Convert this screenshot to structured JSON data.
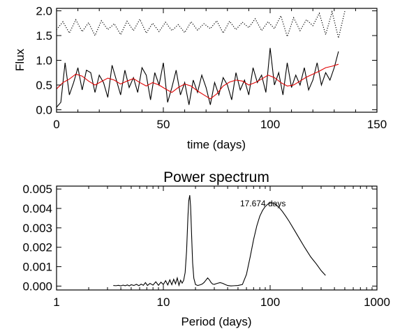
{
  "chart_data": [
    {
      "type": "line",
      "title": "",
      "xlabel": "time (days)",
      "ylabel": "Flux",
      "xlim": [
        0,
        150
      ],
      "ylim": [
        -0.05,
        2.05
      ],
      "x_ticks": [
        0,
        50,
        100,
        150
      ],
      "y_ticks": [
        0.0,
        0.5,
        1.0,
        1.5,
        2.0
      ],
      "x_tick_labels": [
        "0",
        "50",
        "100",
        "150"
      ],
      "y_tick_labels": [
        "0.0",
        "0.5",
        "1.0",
        "1.5",
        "2.0"
      ],
      "series": [
        {
          "color": "#000000",
          "style": "dotted",
          "x": [
            0,
            3,
            6,
            9,
            12,
            15,
            18,
            21,
            24,
            27,
            30,
            33,
            36,
            39,
            42,
            45,
            48,
            51,
            54,
            57,
            60,
            63,
            66,
            69,
            72,
            75,
            78,
            81,
            84,
            87,
            90,
            93,
            96,
            99,
            102,
            105,
            108,
            111,
            114,
            117,
            120,
            123,
            126,
            129,
            132,
            135
          ],
          "y": [
            1.62,
            1.78,
            1.55,
            1.82,
            1.58,
            1.76,
            1.5,
            1.8,
            1.62,
            1.74,
            1.52,
            1.79,
            1.6,
            1.83,
            1.55,
            1.75,
            1.58,
            1.77,
            1.6,
            1.72,
            1.56,
            1.78,
            1.61,
            1.74,
            1.64,
            1.8,
            1.55,
            1.79,
            1.62,
            1.77,
            1.66,
            1.84,
            1.6,
            1.78,
            1.64,
            1.9,
            1.48,
            1.86,
            1.6,
            1.82,
            1.7,
            1.95,
            1.52,
            1.98,
            1.45,
            2.0
          ]
        },
        {
          "color": "#000000",
          "style": "solid",
          "x": [
            0,
            2,
            4,
            6,
            8,
            10,
            12,
            14,
            16,
            18,
            20,
            22,
            24,
            26,
            28,
            30,
            32,
            34,
            36,
            38,
            40,
            42,
            44,
            46,
            48,
            50,
            52,
            54,
            56,
            58,
            60,
            62,
            64,
            66,
            68,
            70,
            72,
            74,
            76,
            78,
            80,
            82,
            84,
            86,
            88,
            90,
            92,
            94,
            96,
            98,
            100,
            102,
            104,
            106,
            108,
            110,
            112,
            114,
            116,
            118,
            120,
            122,
            124,
            126,
            128,
            130,
            132
          ],
          "y": [
            0.05,
            0.15,
            0.95,
            0.3,
            0.55,
            0.85,
            0.4,
            0.8,
            0.75,
            0.35,
            0.7,
            0.55,
            0.25,
            0.9,
            0.6,
            0.3,
            0.8,
            0.45,
            0.65,
            0.35,
            0.85,
            0.7,
            0.2,
            0.75,
            0.5,
            0.95,
            0.15,
            0.45,
            0.8,
            0.3,
            0.55,
            0.1,
            0.6,
            0.35,
            0.7,
            0.45,
            0.1,
            0.55,
            0.3,
            0.65,
            0.5,
            0.2,
            0.75,
            0.4,
            0.6,
            0.3,
            0.85,
            0.55,
            0.7,
            0.35,
            1.25,
            0.5,
            0.75,
            0.3,
            0.95,
            0.45,
            0.7,
            0.5,
            0.85,
            0.4,
            0.6,
            0.95,
            0.5,
            0.75,
            0.6,
            0.85,
            1.18
          ]
        },
        {
          "color": "#e00000",
          "style": "solid",
          "x": [
            0,
            3,
            6,
            9,
            12,
            15,
            18,
            21,
            24,
            27,
            30,
            33,
            36,
            39,
            42,
            45,
            48,
            51,
            54,
            57,
            60,
            63,
            66,
            69,
            72,
            75,
            78,
            81,
            84,
            87,
            90,
            93,
            96,
            99,
            102,
            105,
            108,
            111,
            114,
            117,
            120,
            123,
            126,
            129,
            132
          ],
          "y": [
            0.42,
            0.55,
            0.62,
            0.72,
            0.68,
            0.58,
            0.5,
            0.57,
            0.64,
            0.6,
            0.52,
            0.58,
            0.63,
            0.55,
            0.48,
            0.55,
            0.5,
            0.42,
            0.35,
            0.45,
            0.52,
            0.48,
            0.38,
            0.3,
            0.22,
            0.32,
            0.48,
            0.56,
            0.6,
            0.58,
            0.5,
            0.55,
            0.62,
            0.7,
            0.65,
            0.55,
            0.48,
            0.5,
            0.58,
            0.66,
            0.72,
            0.78,
            0.85,
            0.88,
            0.92
          ]
        }
      ]
    },
    {
      "type": "line",
      "title": "Power spectrum",
      "xlabel": "Period (days)",
      "ylabel": "",
      "xscale": "log",
      "xlim": [
        1,
        1000
      ],
      "ylim": [
        -0.0002,
        0.00515
      ],
      "x_ticks": [
        1,
        10,
        100,
        1000
      ],
      "y_ticks": [
        0.0,
        0.001,
        0.002,
        0.003,
        0.004,
        0.005
      ],
      "x_tick_labels": [
        "1",
        "10",
        "100",
        "1000"
      ],
      "y_tick_labels": [
        "0.000",
        "0.001",
        "0.002",
        "0.003",
        "0.004",
        "0.005"
      ],
      "annotations": [
        {
          "text": "17.674 days",
          "x": 140,
          "y": 0.0041
        }
      ],
      "series": [
        {
          "color": "#000000",
          "style": "solid",
          "x": [
            3.4,
            3.6,
            3.8,
            4.0,
            4.2,
            4.4,
            4.6,
            4.8,
            5.0,
            5.3,
            5.6,
            5.9,
            6.2,
            6.5,
            6.8,
            7.1,
            7.5,
            8.0,
            8.5,
            9.0,
            9.5,
            10.0,
            10.5,
            11.0,
            11.5,
            12.0,
            12.5,
            13.0,
            13.5,
            14.0,
            14.5,
            15.0,
            15.5,
            16.0,
            16.5,
            17.0,
            17.3,
            17.674,
            18.0,
            18.4,
            18.8,
            19.3,
            20.0,
            21.0,
            22.0,
            23.0,
            24.0,
            25.0,
            26.0,
            27.0,
            28.0,
            29.0,
            30.0,
            32.0,
            34.0,
            36.0,
            38.0,
            40.0,
            43.0,
            46.0,
            50.0,
            55.0,
            60.0,
            65.0,
            70.0,
            75.0,
            80.0,
            85.0,
            90.0,
            95.0,
            100.0,
            105.0,
            110.0,
            120.0,
            130.0,
            140.0,
            150.0,
            170.0,
            190.0,
            210.0,
            240.0,
            270.0,
            300.0,
            330.0
          ],
          "y": [
            3e-05,
            2e-05,
            4e-05,
            1e-05,
            5e-05,
            2e-05,
            6e-05,
            1e-05,
            7e-05,
            3e-05,
            9e-05,
            2e-05,
            0.0001,
            4e-05,
            0.00018,
            3e-05,
            0.00014,
            5e-05,
            0.00022,
            4e-05,
            0.0002,
            8e-05,
            0.00028,
            6e-05,
            0.00032,
            7e-05,
            0.00035,
            0.00012,
            0.00042,
            4e-05,
            0.0003,
            0.00015,
            0.0003,
            0.0007,
            0.0018,
            0.0036,
            0.0044,
            0.00468,
            0.0041,
            0.0026,
            0.0012,
            0.0004,
            8e-05,
            3e-05,
            6e-05,
            0.0001,
            0.00018,
            0.0003,
            0.00042,
            0.00032,
            0.00018,
            0.0001,
            9e-05,
            0.00014,
            0.00018,
            0.00014,
            8e-05,
            3e-05,
            1e-05,
            2e-05,
            3e-05,
            8e-05,
            0.0006,
            0.0015,
            0.0024,
            0.0031,
            0.0036,
            0.0039,
            0.0041,
            0.00422,
            0.00428,
            0.00428,
            0.00424,
            0.00408,
            0.00385,
            0.0036,
            0.00335,
            0.00285,
            0.0024,
            0.002,
            0.0015,
            0.00115,
            0.0008,
            0.00055
          ]
        }
      ]
    }
  ]
}
